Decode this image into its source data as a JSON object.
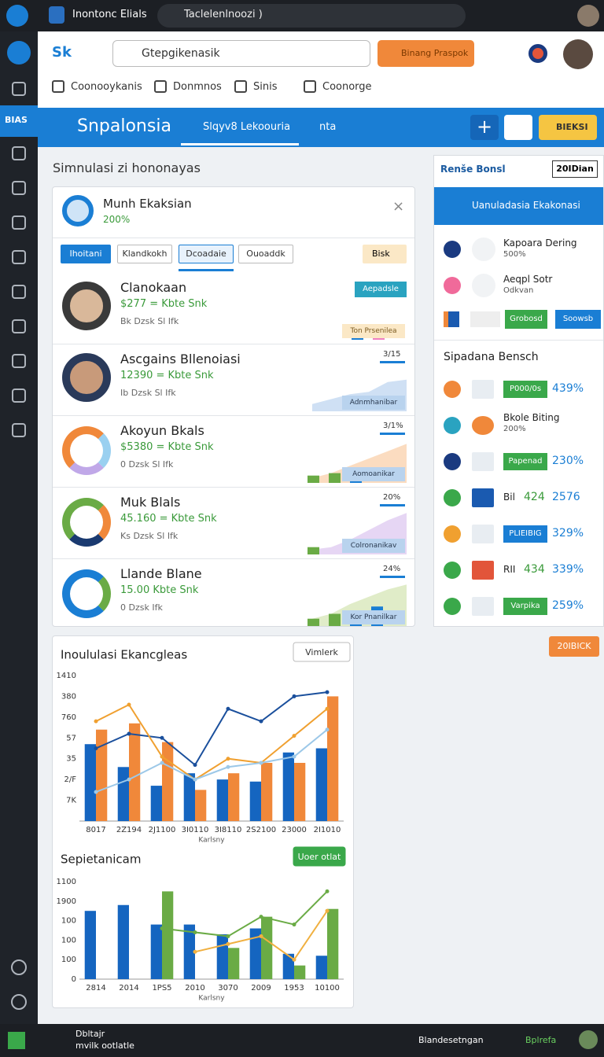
{
  "browser": {
    "tab_title": "Inontonc Elials",
    "address": "Taclelenlnoozi )"
  },
  "sidebar": {
    "badge": "BIAS"
  },
  "header": {
    "logo_text": "Sk",
    "search": "Gtepgikenasik",
    "button": "Binang Praspok"
  },
  "nav": [
    "Coonooykanis",
    "Donmnos",
    "Sinis",
    "Coonorge"
  ],
  "banner": {
    "title": "Snpalonsia",
    "tab1": "Slqyv8 Lekoouria",
    "tab2": "nta",
    "button": "BIEKSI"
  },
  "main": {
    "heading": "Simnulasi zi hononayas",
    "card_title": "Munh Ekaksian",
    "card_value": "200%",
    "tabs": [
      "Ihoitani",
      "Klandkokh",
      "Dcoadaie",
      "Ouoaddk"
    ],
    "filter": "Bisk",
    "spark_lim": [
      0,
      40
    ],
    "rows": [
      {
        "name": "Clanokaan",
        "value": "$277 = Kbte Snk",
        "detail": "Bk Dzsk Sl Ifk",
        "chip": "Aepadsle",
        "chip2": "Ton Prsenilea",
        "bars": [
          8,
          8
        ]
      },
      {
        "name": "Ascgains Bllenoiasi",
        "value": "12390 = Kbte Snk",
        "detail": "Ib Dzsk Sl Ifk",
        "rate": "3/15",
        "chip": "Adnmhanibar",
        "spark": [
          6,
          10,
          14,
          16,
          24,
          26
        ],
        "bars": []
      },
      {
        "name": "Akoyun Bkals",
        "value": "$5380 = Kbte Snk",
        "detail": "0 Dzsk Sl Ifk",
        "rate": "3/1%",
        "chip": "Aomoanikar",
        "spark": [
          4,
          8,
          14,
          20,
          26,
          32
        ],
        "bars": [
          6,
          8,
          12
        ]
      },
      {
        "name": "Muk Blals",
        "value": "45.160 = Kbte Snk",
        "detail": "Ks Dzsk Sl Ifk",
        "rate": "20%",
        "chip": "Colronanikav",
        "spark": [
          4,
          6,
          12,
          20,
          28,
          34
        ],
        "bars": [
          6
        ]
      },
      {
        "name": "Llande Blane",
        "value": "15.00 Kbte Snk",
        "detail": "0 Dzsk Ifk",
        "rate": "24%",
        "chip": "Kor Pnanilkar",
        "spark": [
          6,
          10,
          18,
          24,
          30,
          34
        ],
        "bars": [
          6,
          10,
          12,
          16
        ]
      }
    ]
  },
  "side": {
    "title": "Renše Bonsl",
    "badge": "20IDian",
    "button": "Uanuladasia Ekakonasi",
    "items": [
      {
        "title": "Kapoara Dering",
        "sub": "500%"
      },
      {
        "title": "Aeqpl Sotr",
        "sub": "Odkvan"
      }
    ],
    "buttons": [
      "Grobosd",
      "Soowsb"
    ],
    "list_title": "Sipadana Bensch",
    "list": [
      {
        "label": "P000/0s",
        "value": "439%"
      },
      {
        "label": "Bkole Biting",
        "value": "200%"
      },
      {
        "label": "Papenad",
        "value": "230%"
      },
      {
        "label": "Bil",
        "mid": "424",
        "value": "2576"
      },
      {
        "label": "PLIEIBIG",
        "value": "329%"
      },
      {
        "label": "RII",
        "mid": "434",
        "value": "339%"
      },
      {
        "label": "Varpika",
        "value": "259%"
      }
    ],
    "action": "20IBICK"
  },
  "charts": [
    {
      "type": "bar",
      "title": "Inoululasi Ekancgleas",
      "button": "Vimlerk",
      "xlabel": "Karlsny",
      "ylim": [
        0,
        7
      ],
      "yticks": [
        {
          "value": 7,
          "label": "1410"
        },
        {
          "value": 6,
          "label": "380"
        },
        {
          "value": 5,
          "label": "760"
        },
        {
          "value": 4,
          "label": "57"
        },
        {
          "value": 3,
          "label": "35"
        },
        {
          "value": 2,
          "label": "2/F"
        },
        {
          "value": 1,
          "label": "7K"
        }
      ],
      "categories": [
        "8017",
        "2Z194",
        "2J1100",
        "3I0110",
        "3I8110",
        "2S2100",
        "23000",
        "2I1010"
      ],
      "series": [
        {
          "kind": "bar",
          "color": "#1565c0",
          "values": [
            3.7,
            2.6,
            1.7,
            2.3,
            2.0,
            1.9,
            3.3,
            3.5
          ]
        },
        {
          "kind": "bar",
          "color": "#f0883a",
          "values": [
            4.4,
            4.7,
            3.8,
            1.5,
            2.3,
            2.8,
            2.8,
            6.0
          ]
        },
        {
          "kind": "line",
          "color": "#1a4f9c",
          "values": [
            3.5,
            4.2,
            4.0,
            2.7,
            5.4,
            4.8,
            6.0,
            6.2
          ]
        },
        {
          "kind": "line",
          "color": "#f0a030",
          "values": [
            4.8,
            5.6,
            3.1,
            2.0,
            3.0,
            2.8,
            4.1,
            5.4
          ]
        },
        {
          "kind": "line",
          "color": "#9cc8e8",
          "values": [
            1.4,
            2.0,
            2.8,
            2.0,
            2.6,
            2.8,
            3.1,
            4.4
          ]
        }
      ]
    },
    {
      "type": "bar",
      "title": "Sepietanicam",
      "button": "Uoer otlat",
      "xlabel": "Karlsny",
      "ylim": [
        0,
        5
      ],
      "yticks": [
        {
          "value": 5,
          "label": "1100"
        },
        {
          "value": 4,
          "label": "1900"
        },
        {
          "value": 3,
          "label": "100"
        },
        {
          "value": 2,
          "label": "100"
        },
        {
          "value": 1,
          "label": "100"
        },
        0
      ],
      "categories": [
        "2814",
        "2014",
        "1PS5",
        "2010",
        "3070",
        "2009",
        "1953",
        "10100"
      ],
      "series": [
        {
          "kind": "bar",
          "color": "#1565c0",
          "values": [
            3.5,
            3.8,
            2.8,
            2.8,
            2.3,
            2.6,
            1.3,
            1.2
          ]
        },
        {
          "kind": "bar",
          "color": "#6aab45",
          "values": [
            0,
            0,
            4.5,
            0,
            1.6,
            3.2,
            0.7,
            3.6
          ]
        },
        {
          "kind": "line",
          "color": "#6aab45",
          "values": [
            null,
            null,
            2.6,
            2.4,
            2.2,
            3.2,
            2.8,
            4.5
          ]
        },
        {
          "kind": "line",
          "color": "#f0b040",
          "values": [
            null,
            null,
            null,
            1.4,
            1.8,
            2.2,
            1.0,
            3.5
          ]
        }
      ]
    }
  ],
  "footer": {
    "line1": "Dbltajr",
    "line2": "mvilk ootlatle",
    "right1": "Blandesetngan",
    "right2": "Bplrefa"
  }
}
